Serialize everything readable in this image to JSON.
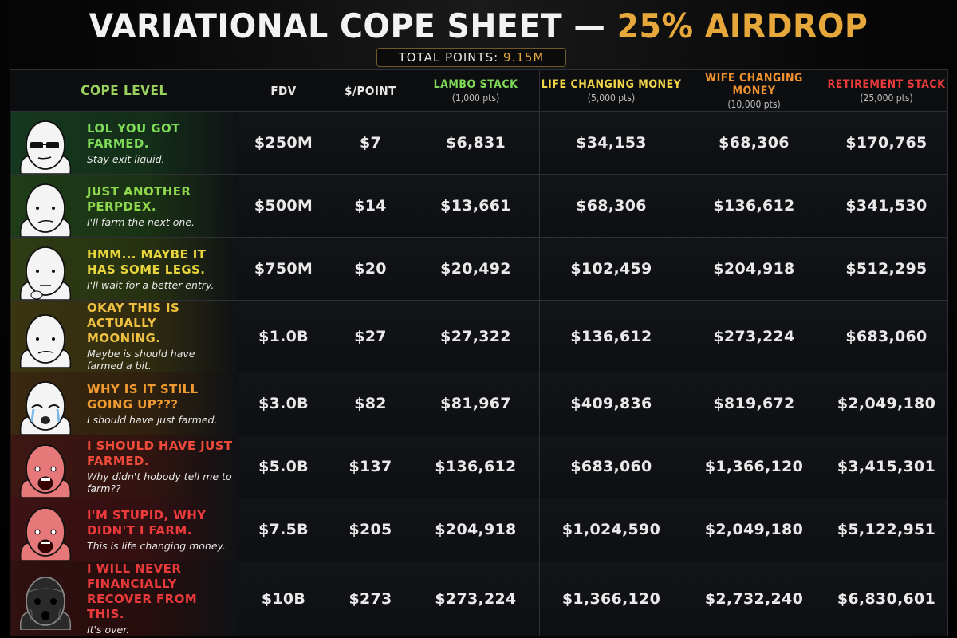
{
  "header": {
    "title_main": "VARIATIONAL COPE SHEET — ",
    "title_accent": "25% AIRDROP",
    "points_label": "TOTAL POINTS: ",
    "points_value": "9.15M"
  },
  "columns": {
    "cope": "COPE LEVEL",
    "fdv": "FDV",
    "per_point": "$/POINT",
    "stacks": [
      {
        "name": "LAMBO STACK",
        "pts": "(1,000 pts)",
        "color": "#7ed957"
      },
      {
        "name": "LIFE CHANGING MONEY",
        "pts": "(5,000 pts)",
        "color": "#f1d64a"
      },
      {
        "name": "WIFE CHANGING MONEY",
        "pts": "(10,000 pts)",
        "color": "#f0922e"
      },
      {
        "name": "RETIREMENT STACK",
        "pts": "(25,000 pts)",
        "color": "#ec3b3b"
      }
    ]
  },
  "rows": [
    {
      "title": "LOL YOU GOT FARMED.",
      "sub": "Stay exit liquid.",
      "face": "sunglasses-wojak-icon",
      "title_color": "#7ed957",
      "bg": "#16381e",
      "fdv": "$250M",
      "ppt": "$7",
      "v": [
        "$6,831",
        "$34,153",
        "$68,306",
        "$170,765"
      ]
    },
    {
      "title": "JUST ANOTHER PERPDEX.",
      "sub": "I'll farm the next one.",
      "face": "smirk-wojak-icon",
      "title_color": "#8fd84e",
      "bg": "#1f3d18",
      "fdv": "$500M",
      "ppt": "$14",
      "v": [
        "$13,661",
        "$68,306",
        "$136,612",
        "$341,530"
      ]
    },
    {
      "title": "HMM... MAYBE IT HAS SOME LEGS.",
      "sub": "I'll wait for a better entry.",
      "face": "thinking-wojak-icon",
      "title_color": "#e8d43c",
      "bg": "#2f3c14",
      "fdv": "$750M",
      "ppt": "$20",
      "v": [
        "$20,492",
        "$102,459",
        "$204,918",
        "$512,295"
      ]
    },
    {
      "title": "OKAY THIS IS ACTUALLY MOONING.",
      "sub": "Maybe is should have farmed a bit.",
      "face": "worried-wojak-icon",
      "title_color": "#f0c040",
      "bg": "#3b3512",
      "fdv": "$1.0B",
      "ppt": "$27",
      "v": [
        "$27,322",
        "$136,612",
        "$273,224",
        "$683,060"
      ]
    },
    {
      "title": "WHY IS IT STILL GOING UP???",
      "sub": "I should have just farmed.",
      "face": "crying-wojak-icon",
      "title_color": "#f09a32",
      "bg": "#3a2810",
      "fdv": "$3.0B",
      "ppt": "$82",
      "v": [
        "$81,967",
        "$409,836",
        "$819,672",
        "$2,049,180"
      ]
    },
    {
      "title": "I SHOULD HAVE JUST FARMED.",
      "sub": "Why didn't hobody tell me to farm??",
      "face": "red-screaming-wojak-icon",
      "title_color": "#ef4a3a",
      "bg": "#3d1712",
      "fdv": "$5.0B",
      "ppt": "$137",
      "v": [
        "$136,612",
        "$683,060",
        "$1,366,120",
        "$3,415,301"
      ]
    },
    {
      "title": "I'M STUPID, WHY DIDN'T I FARM.",
      "sub": "This is life changing money.",
      "face": "raging-wojak-icon",
      "title_color": "#ef3b3b",
      "bg": "#3e1214",
      "fdv": "$7.5B",
      "ppt": "$205",
      "v": [
        "$204,918",
        "$1,024,590",
        "$2,049,180",
        "$5,122,951"
      ]
    },
    {
      "title": "I WILL NEVER FINANCIALLY RECOVER FROM THIS.",
      "sub": "It's over.",
      "face": "withered-wojak-icon",
      "title_color": "#e83a3a",
      "bg": "#301010",
      "fdv": "$10B",
      "ppt": "$273",
      "v": [
        "$273,224",
        "$1,366,120",
        "$2,732,240",
        "$6,830,601"
      ]
    }
  ]
}
